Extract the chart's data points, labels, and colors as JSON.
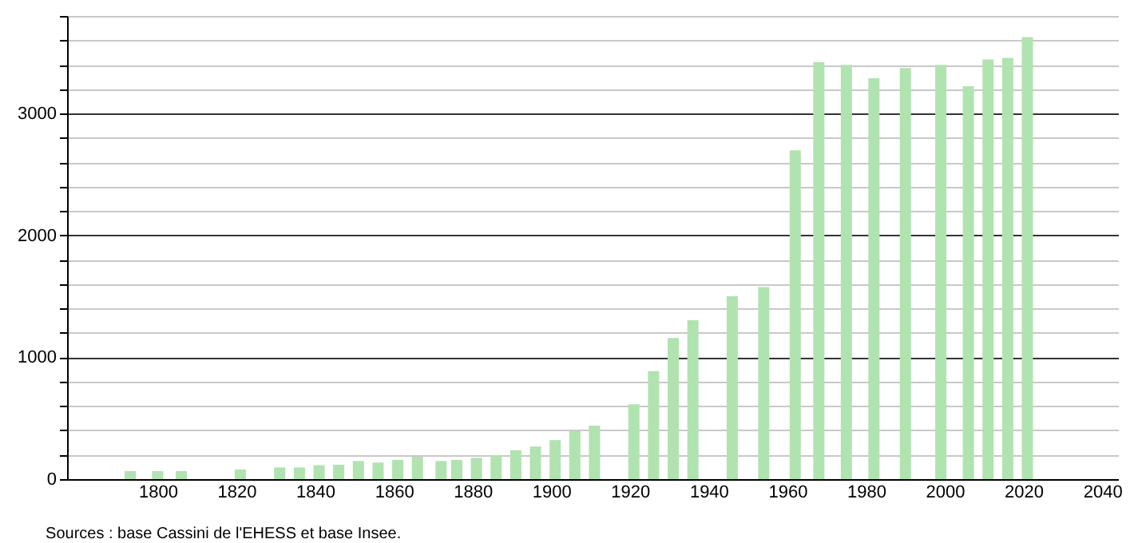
{
  "chart_data": {
    "type": "bar",
    "x": [
      1793,
      1800,
      1806,
      1821,
      1831,
      1836,
      1841,
      1846,
      1851,
      1856,
      1861,
      1866,
      1872,
      1876,
      1881,
      1886,
      1891,
      1896,
      1901,
      1906,
      1911,
      1921,
      1926,
      1931,
      1936,
      1946,
      1954,
      1962,
      1968,
      1975,
      1982,
      1990,
      1999,
      2006,
      2011,
      2016,
      2021
    ],
    "values": [
      66,
      66,
      66,
      79,
      96,
      96,
      114,
      118,
      149,
      136,
      158,
      184,
      149,
      158,
      175,
      197,
      237,
      268,
      320,
      395,
      439,
      614,
      886,
      1158,
      1303,
      1500,
      1575,
      2697,
      3421,
      3399,
      3289,
      3373,
      3399,
      3224,
      3443,
      3456,
      3627
    ],
    "color": "#b0e3b0",
    "xlim": [
      1779,
      2042
    ],
    "xticks": [
      1800,
      1820,
      1840,
      1860,
      1880,
      1900,
      1920,
      1940,
      1960,
      1980,
      2000,
      2020,
      2040
    ],
    "ylim": [
      0,
      3800
    ],
    "yticks": [
      0,
      {
        "value": 200,
        "label": null
      },
      {
        "value": 400,
        "label": null
      },
      {
        "value": 600,
        "label": null
      },
      {
        "value": 800,
        "label": null
      },
      1000,
      {
        "value": 1200,
        "label": null
      },
      {
        "value": 1400,
        "label": null
      },
      {
        "value": 1600,
        "label": null
      },
      {
        "value": 1800,
        "label": null
      },
      2000,
      {
        "value": 2200,
        "label": null
      },
      {
        "value": 2400,
        "label": null
      },
      {
        "value": 2600,
        "label": null
      },
      {
        "value": 2800,
        "label": null
      },
      3000,
      {
        "value": 3200,
        "label": null
      },
      {
        "value": 3400,
        "label": null
      },
      {
        "value": 3600,
        "label": null
      },
      {
        "value": 3800,
        "label": null
      }
    ],
    "grid": true,
    "annotations": [
      "Sources : base Cassini de l'EHESS et base Insee."
    ]
  }
}
